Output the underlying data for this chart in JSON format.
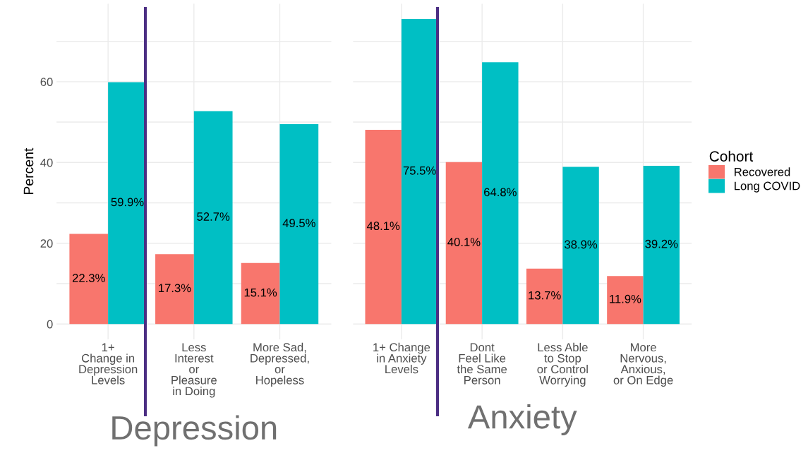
{
  "chart_data": [
    {
      "type": "bar",
      "xlabel": "Depression",
      "ylabel": "Percent",
      "categories": [
        "1+\nChange in\nDepression\nLevels",
        "Less\nInterest\nor\nPleasure\nin Doing",
        "More Sad,\nDepressed,\nor\nHopeless"
      ],
      "series": [
        {
          "color": "#f8766d",
          "values": [
            22.3,
            17.3,
            15.1
          ],
          "value_labels": [
            "22.3%",
            "17.3%",
            "15.1%"
          ]
        },
        {
          "color": "#00bfc4",
          "values": [
            59.9,
            52.7,
            49.5
          ],
          "value_labels": [
            "59.9%",
            "52.7%",
            "49.5%"
          ]
        }
      ],
      "ylim": [
        -3.8,
        79.3
      ],
      "yticks": [
        0,
        {
          "value": 10,
          "label": null
        },
        20,
        {
          "value": 30,
          "label": null
        },
        40,
        {
          "value": 50,
          "label": null
        },
        60,
        {
          "value": 70,
          "label": null
        }
      ],
      "grid": true
    },
    {
      "type": "bar",
      "xlabel": "Anxiety",
      "legend_title": "Cohort",
      "legend": "right",
      "categories": [
        "1+ Change\nin Anxiety\nLevels",
        "Dont\nFeel Like\nthe Same\nPerson",
        "Less Able\nto Stop\nor Control\nWorrying",
        "More\nNervous,\nAnxious,\nor On Edge"
      ],
      "series": [
        {
          "name": "Recovered",
          "color": "#f8766d",
          "values": [
            48.1,
            40.1,
            13.7,
            11.9
          ],
          "value_labels": [
            "48.1%",
            "40.1%",
            "13.7%",
            "11.9%"
          ]
        },
        {
          "name": "Long COVID",
          "color": "#00bfc4",
          "values": [
            75.5,
            64.8,
            38.9,
            39.2
          ],
          "value_labels": [
            "75.5%",
            "64.8%",
            "38.9%",
            "39.2%"
          ]
        }
      ],
      "ylim": [
        -3.8,
        79.3
      ],
      "yticks": [
        0,
        {
          "value": 10,
          "label": null
        },
        20,
        {
          "value": 30,
          "label": null
        },
        40,
        {
          "value": 50,
          "label": null
        },
        60,
        {
          "value": 70,
          "label": null
        }
      ],
      "tick_labels": "x",
      "grid": true
    }
  ]
}
